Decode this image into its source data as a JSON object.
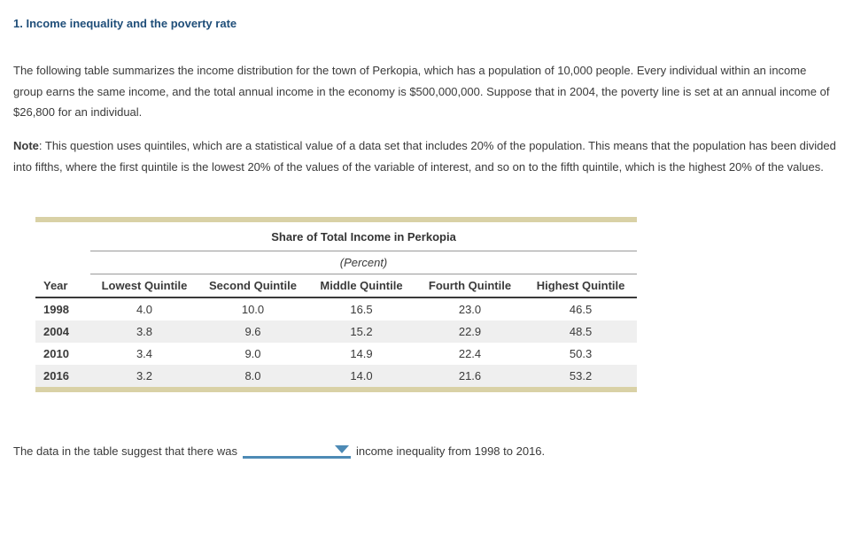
{
  "page": {
    "title": "1. Income inequality and the poverty rate",
    "intro": "The following table summarizes the income distribution for the town of Perkopia, which has a population of 10,000 people. Every individual within an income group earns the same income, and the total annual income in the economy is $500,000,000. Suppose that in 2004, the poverty line is set at an annual income of $26,800 for an individual.",
    "note_label": "Note",
    "note_rest": ": This question uses quintiles, which are a statistical value of a data set that includes 20% of the population. This means that the population has been divided into fifths, where the first quintile is the lowest 20% of the values of the variable of interest, and so on to the fifth quintile, which is the highest 20% of the values."
  },
  "table": {
    "title": "Share of Total Income in Perkopia",
    "subtitle": "(Percent)",
    "columns": [
      "Year",
      "Lowest Quintile",
      "Second Quintile",
      "Middle Quintile",
      "Fourth Quintile",
      "Highest Quintile"
    ],
    "rows": [
      {
        "year": "1998",
        "values": [
          "4.0",
          "10.0",
          "16.5",
          "23.0",
          "46.5"
        ]
      },
      {
        "year": "2004",
        "values": [
          "3.8",
          "9.6",
          "15.2",
          "22.9",
          "48.5"
        ]
      },
      {
        "year": "2010",
        "values": [
          "3.4",
          "9.0",
          "14.9",
          "22.4",
          "50.3"
        ]
      },
      {
        "year": "2016",
        "values": [
          "3.2",
          "8.0",
          "14.0",
          "21.6",
          "53.2"
        ]
      }
    ]
  },
  "question": {
    "text_before": "The data in the table suggest that there was",
    "dropdown_value": "",
    "text_after": "income inequality from 1998 to 2016."
  },
  "colors": {
    "title_blue": "#1f4e79",
    "table_accent_tan": "#d9d1a6",
    "row_alt_gray": "#efefef",
    "header_rule_dark": "#3a3a3a",
    "thin_rule_gray": "#999999",
    "dropdown_blue": "#4d8ab5",
    "body_text": "#3a3a3a"
  }
}
